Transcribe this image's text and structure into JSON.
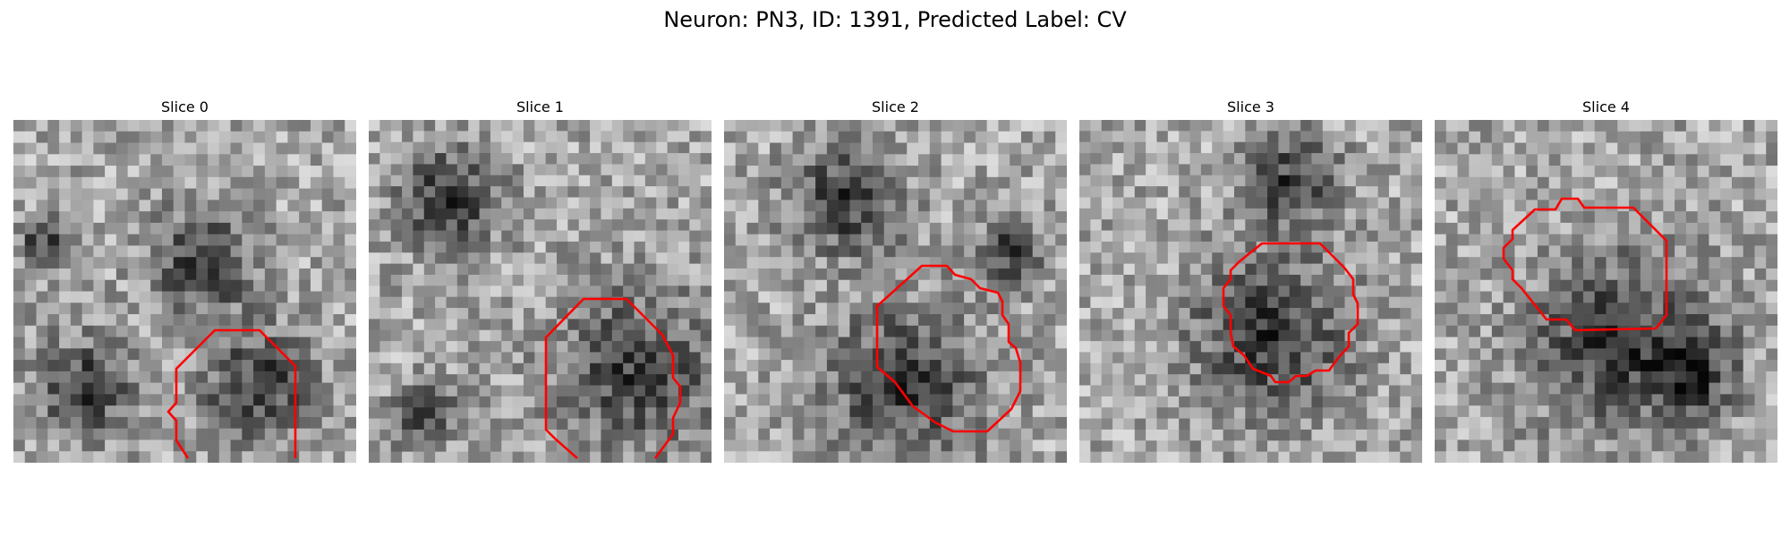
{
  "figure": {
    "title": "Neuron: PN3, ID: 1391, Predicted Label: CV"
  },
  "slices": [
    {
      "title": "Slice 0"
    },
    {
      "title": "Slice 1"
    },
    {
      "title": "Slice 2"
    },
    {
      "title": "Slice 3"
    },
    {
      "title": "Slice 4"
    }
  ],
  "colors": {
    "contour": "#ff0000",
    "background": "#ffffff"
  },
  "image": {
    "colormap": "grayscale",
    "grid": [
      31,
      31
    ]
  }
}
